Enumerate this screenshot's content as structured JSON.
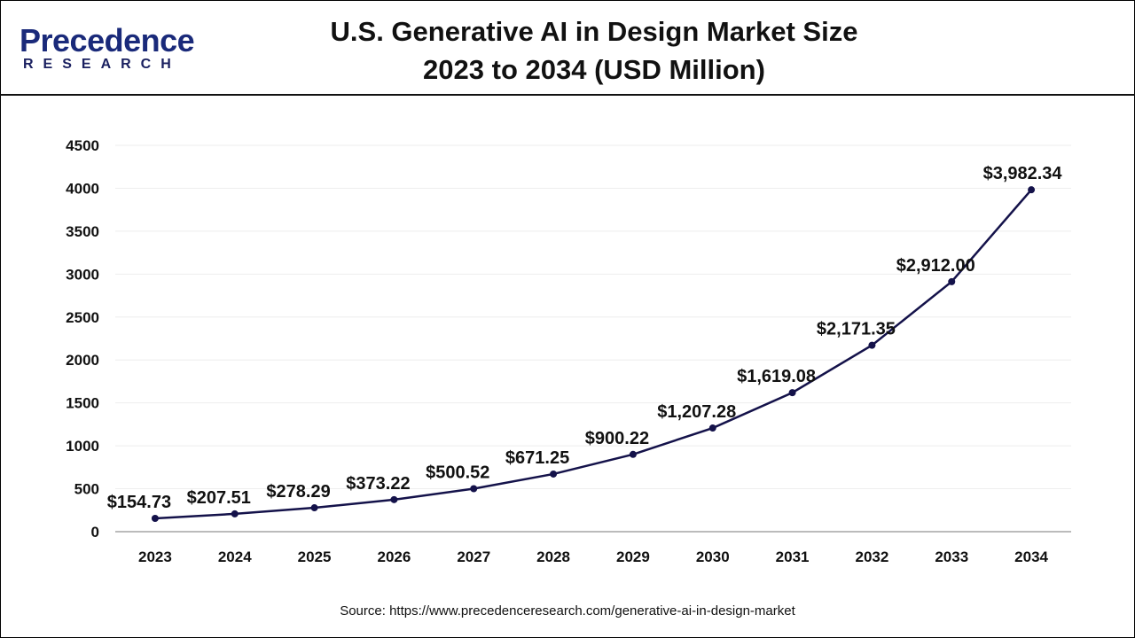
{
  "logo": {
    "line1": "Precedence",
    "line2": "RESEARCH"
  },
  "title_line1": "U.S. Generative AI in Design Market Size",
  "title_line2": "2023 to 2034 (USD Million)",
  "source": "Source: https://www.precedenceresearch.com/generative-ai-in-design-market",
  "chart_data": {
    "type": "line",
    "title": "U.S. Generative AI in Design Market Size 2023 to 2034 (USD Million)",
    "categories": [
      "2023",
      "2024",
      "2025",
      "2026",
      "2027",
      "2028",
      "2029",
      "2030",
      "2031",
      "2032",
      "2033",
      "2034"
    ],
    "values": [
      154.73,
      207.51,
      278.29,
      373.22,
      500.52,
      671.25,
      900.22,
      1207.28,
      1619.08,
      2171.35,
      2912.0,
      3982.34
    ],
    "labels": [
      "$154.73",
      "$207.51",
      "$278.29",
      "$373.22",
      "$500.52",
      "$671.25",
      "$900.22",
      "$1,207.28",
      "$1,619.08",
      "$2,171.35",
      "$2,912.00",
      "$3,982.34"
    ],
    "yticks": [
      "0",
      "500",
      "1000",
      "1500",
      "2000",
      "2500",
      "3000",
      "3500",
      "4000",
      "4500"
    ],
    "ylim": [
      0,
      4500
    ],
    "grid": true,
    "line_color": "#14124a"
  }
}
